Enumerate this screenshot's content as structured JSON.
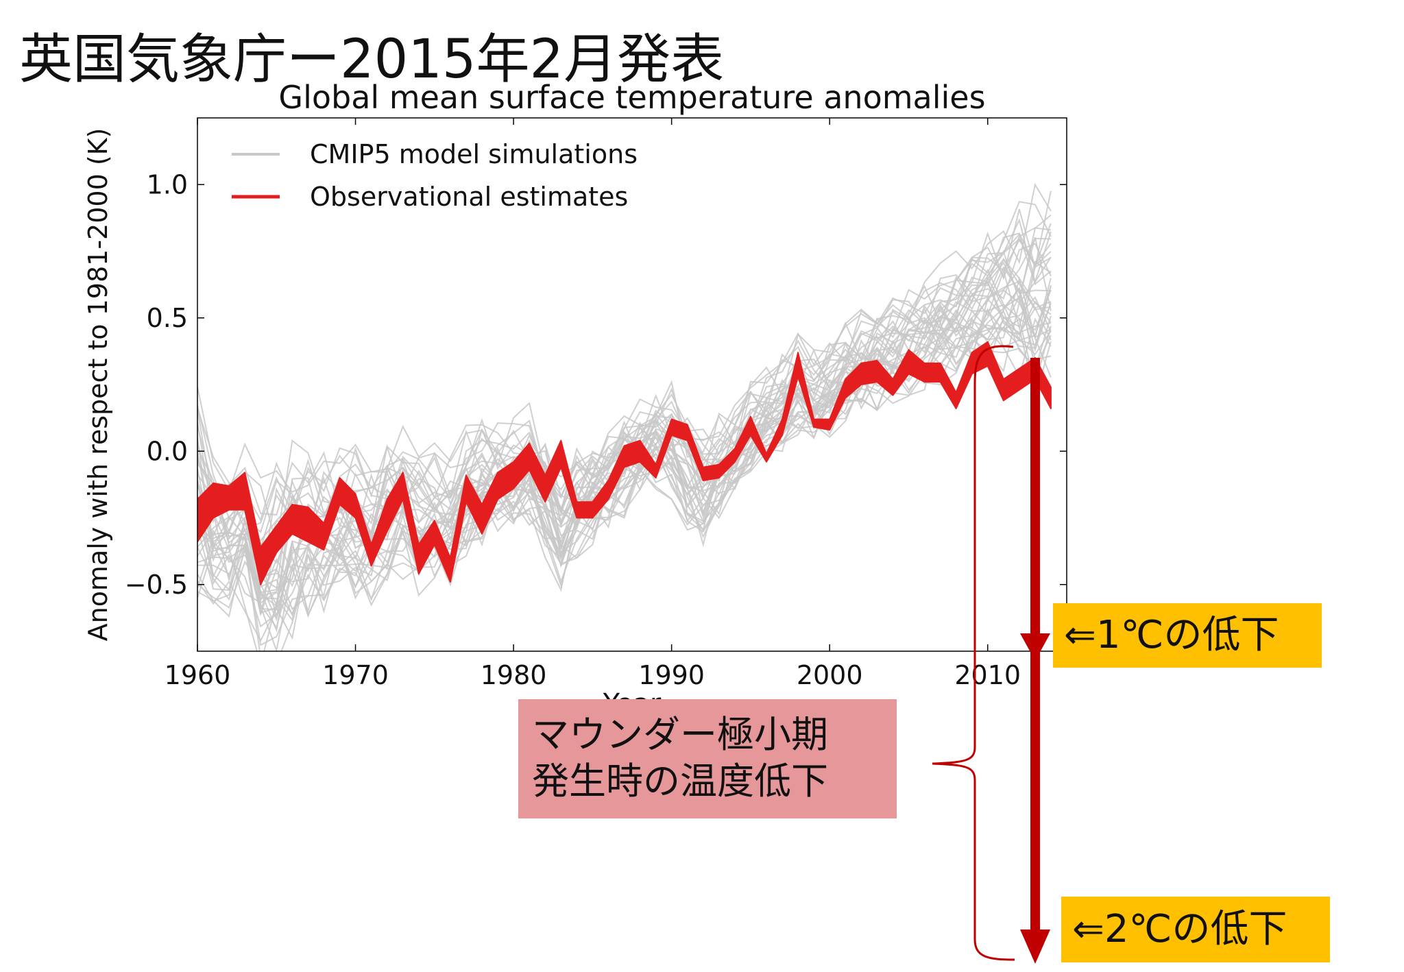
{
  "slide": {
    "title": "英国気象庁ー2015年2月発表",
    "callout_1c": "⇐1℃の低下",
    "callout_2c": "⇐2℃の低下",
    "callout_maunder_line1": "マウンダー極小期",
    "callout_maunder_line2": "発生時の温度低下"
  },
  "colors": {
    "observed": "#e41e1e",
    "model": "#c8c8c8",
    "annotation": "#c00000",
    "callout_yellow": "#FFC000",
    "callout_pink": "#E6979A"
  },
  "chart_data": {
    "type": "line",
    "title": "Global mean surface temperature anomalies",
    "xlabel": "Year",
    "ylabel": "Anomaly with respect to 1981-2000 (K)",
    "xlim": [
      1960,
      2015
    ],
    "ylim": [
      -0.75,
      1.25
    ],
    "xticks": [
      1960,
      1970,
      1980,
      1990,
      2000,
      2010
    ],
    "yticks": [
      -0.5,
      0.0,
      0.5,
      1.0
    ],
    "ytick_labels": [
      "−0.5",
      "0.0",
      "0.5",
      "1.0"
    ],
    "grid": false,
    "legend_position": "top-left",
    "legend": [
      "CMIP5 model simulations",
      "Observational estimates"
    ],
    "x": [
      1960,
      1961,
      1962,
      1963,
      1964,
      1965,
      1966,
      1967,
      1968,
      1969,
      1970,
      1971,
      1972,
      1973,
      1974,
      1975,
      1976,
      1977,
      1978,
      1979,
      1980,
      1981,
      1982,
      1983,
      1984,
      1985,
      1986,
      1987,
      1988,
      1989,
      1990,
      1991,
      1992,
      1993,
      1994,
      1995,
      1996,
      1997,
      1998,
      1999,
      2000,
      2001,
      2002,
      2003,
      2004,
      2005,
      2006,
      2007,
      2008,
      2009,
      2010,
      2011,
      2012,
      2013,
      2014
    ],
    "series": [
      {
        "name": "Observational estimates",
        "upper": [
          -0.18,
          -0.12,
          -0.13,
          -0.08,
          -0.36,
          -0.28,
          -0.2,
          -0.21,
          -0.27,
          -0.1,
          -0.16,
          -0.35,
          -0.18,
          -0.08,
          -0.35,
          -0.26,
          -0.4,
          -0.09,
          -0.2,
          -0.08,
          -0.04,
          0.03,
          -0.09,
          0.04,
          -0.19,
          -0.19,
          -0.11,
          0.02,
          0.04,
          -0.05,
          0.12,
          0.1,
          -0.06,
          -0.05,
          0.01,
          0.13,
          -0.01,
          0.12,
          0.37,
          0.12,
          0.12,
          0.27,
          0.33,
          0.34,
          0.27,
          0.38,
          0.33,
          0.33,
          0.22,
          0.37,
          0.41,
          0.27,
          0.31,
          0.35,
          0.24
        ],
        "lower": [
          -0.34,
          -0.25,
          -0.22,
          -0.22,
          -0.5,
          -0.38,
          -0.31,
          -0.34,
          -0.37,
          -0.2,
          -0.25,
          -0.43,
          -0.3,
          -0.18,
          -0.46,
          -0.35,
          -0.49,
          -0.19,
          -0.31,
          -0.18,
          -0.14,
          -0.07,
          -0.19,
          -0.06,
          -0.25,
          -0.25,
          -0.18,
          -0.06,
          -0.04,
          -0.1,
          0.06,
          0.04,
          -0.11,
          -0.1,
          -0.04,
          0.06,
          -0.04,
          0.06,
          0.28,
          0.09,
          0.08,
          0.2,
          0.25,
          0.26,
          0.21,
          0.29,
          0.26,
          0.26,
          0.16,
          0.29,
          0.32,
          0.19,
          0.23,
          0.27,
          0.16
        ]
      },
      {
        "name": "CMIP5 model simulations",
        "band_upper": [
          0.3,
          0.05,
          0.02,
          0.05,
          -0.1,
          -0.02,
          0.1,
          0.05,
          0.02,
          0.05,
          0.05,
          0.02,
          0.1,
          0.12,
          0.02,
          0.05,
          0.0,
          0.12,
          0.15,
          0.12,
          0.15,
          0.18,
          0.1,
          -0.05,
          0.05,
          0.1,
          0.12,
          0.2,
          0.22,
          0.25,
          0.28,
          0.18,
          0.1,
          0.15,
          0.2,
          0.28,
          0.32,
          0.38,
          0.45,
          0.42,
          0.45,
          0.5,
          0.55,
          0.58,
          0.6,
          0.65,
          0.7,
          0.72,
          0.75,
          0.8,
          0.88,
          0.9,
          0.95,
          1.0,
          1.05
        ],
        "band_lower": [
          -0.55,
          -0.6,
          -0.62,
          -0.6,
          -0.8,
          -0.82,
          -0.7,
          -0.65,
          -0.6,
          -0.55,
          -0.55,
          -0.6,
          -0.5,
          -0.48,
          -0.55,
          -0.52,
          -0.5,
          -0.4,
          -0.35,
          -0.32,
          -0.3,
          -0.28,
          -0.4,
          -0.52,
          -0.4,
          -0.35,
          -0.3,
          -0.25,
          -0.2,
          -0.15,
          -0.18,
          -0.3,
          -0.35,
          -0.25,
          -0.18,
          -0.1,
          -0.05,
          0.0,
          0.05,
          0.02,
          0.05,
          0.1,
          0.12,
          0.15,
          0.18,
          0.2,
          0.22,
          0.25,
          0.28,
          0.3,
          0.32,
          0.3,
          0.25,
          0.2,
          0.18
        ]
      }
    ]
  }
}
